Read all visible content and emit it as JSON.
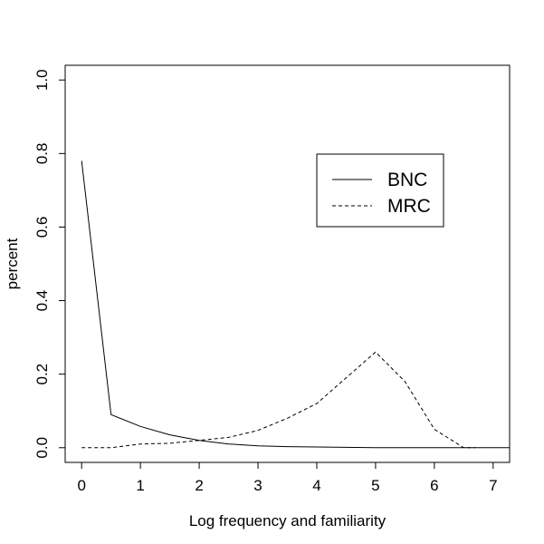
{
  "chart_data": {
    "type": "line",
    "title": "",
    "xlabel": "Log frequency and familiarity",
    "ylabel": "percent",
    "xlim": [
      -0.28,
      7.28
    ],
    "ylim": [
      -0.04,
      1.04
    ],
    "x_ticks": [
      0,
      1,
      2,
      3,
      4,
      5,
      6,
      7
    ],
    "y_ticks": [
      0.0,
      0.2,
      0.4,
      0.6,
      0.8,
      1.0
    ],
    "x_tick_labels": [
      "0",
      "1",
      "2",
      "3",
      "4",
      "5",
      "6",
      "7"
    ],
    "y_tick_labels": [
      "0.0",
      "0.2",
      "0.4",
      "0.6",
      "0.8",
      "1.0"
    ],
    "grid": false,
    "legend_position": "top-right",
    "series": [
      {
        "name": "BNC",
        "line_style": "solid",
        "x": [
          0,
          0.5,
          1.0,
          1.5,
          2.0,
          2.5,
          3.0,
          3.5,
          4.0,
          4.5,
          5.0,
          5.5,
          6.0,
          6.5,
          7.0,
          7.28
        ],
        "y": [
          0.78,
          0.09,
          0.058,
          0.035,
          0.02,
          0.01,
          0.005,
          0.003,
          0.002,
          0.001,
          0.0,
          0.0,
          0.0,
          0.0,
          0.0,
          0.0
        ]
      },
      {
        "name": "MRC",
        "line_style": "dashed",
        "x": [
          0,
          0.5,
          1.0,
          1.5,
          2.0,
          2.5,
          3.0,
          3.5,
          4.0,
          4.5,
          5.0,
          5.5,
          6.0,
          6.5,
          6.7
        ],
        "y": [
          0.0,
          0.0,
          0.01,
          0.012,
          0.02,
          0.028,
          0.047,
          0.08,
          0.12,
          0.19,
          0.26,
          0.18,
          0.05,
          0.0,
          0.0
        ]
      }
    ]
  }
}
